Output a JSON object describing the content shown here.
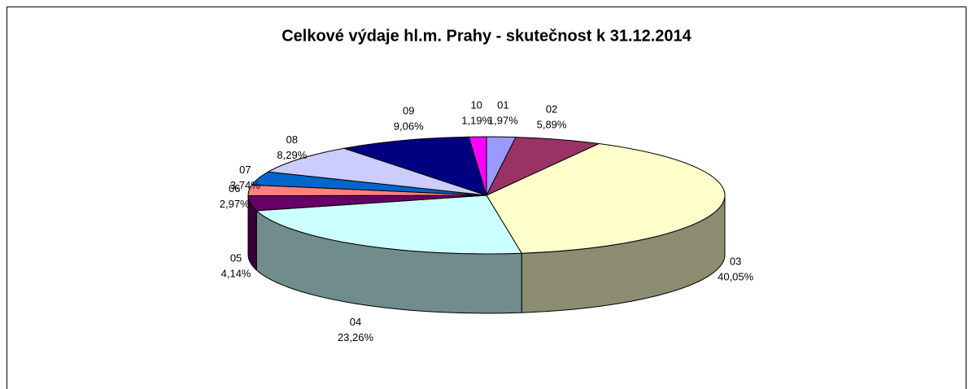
{
  "chart_data": {
    "type": "pie",
    "title": "Celkové výdaje hl.m. Prahy - skutečnost k 31.12.2014",
    "categories": [
      "01",
      "02",
      "03",
      "04",
      "05",
      "06",
      "07",
      "08",
      "09",
      "10"
    ],
    "values": [
      1.97,
      5.89,
      40.05,
      23.26,
      4.14,
      2.97,
      3.74,
      8.29,
      9.06,
      1.19
    ],
    "value_labels": [
      "1,97%",
      "5,89%",
      "40,05%",
      "23,26%",
      "4,14%",
      "2,97%",
      "3,74%",
      "8,29%",
      "9,06%",
      "1,19%"
    ],
    "colors": [
      "#9999ff",
      "#993366",
      "#ffffcc",
      "#ccffff",
      "#660066",
      "#ff8080",
      "#0066cc",
      "#ccccff",
      "#000080",
      "#ff00ff"
    ]
  }
}
